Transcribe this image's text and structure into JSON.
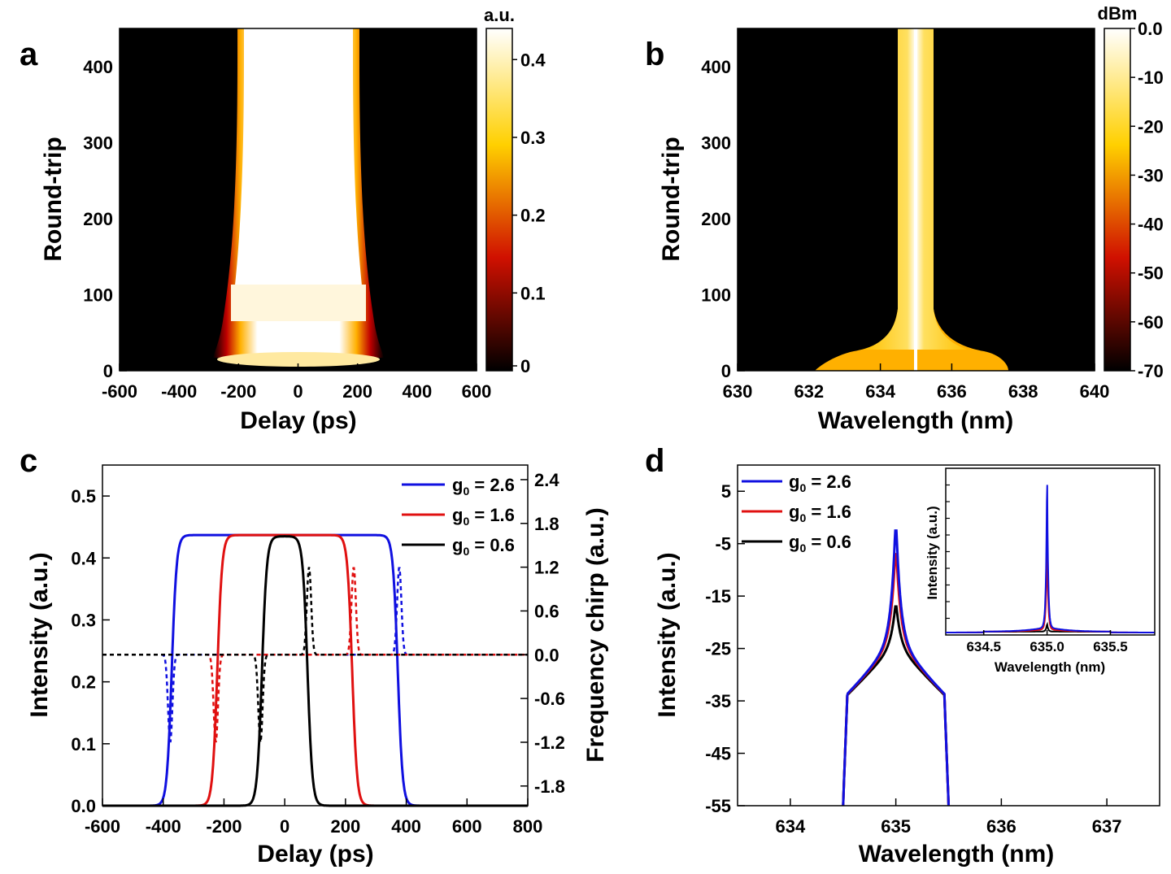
{
  "chart_data": [
    {
      "panel": "a",
      "type": "heatmap",
      "xlabel": "Delay (ps)",
      "ylabel": "Round-trip",
      "xlim": [
        -600,
        600
      ],
      "ylim": [
        0,
        450
      ],
      "xticks": [
        "-600",
        "-400",
        "-200",
        "0",
        "200",
        "400",
        "600"
      ],
      "yticks": [
        "0",
        "100",
        "200",
        "300",
        "400"
      ],
      "colorbar": {
        "unit": "a.u.",
        "min": 0,
        "max": 0.44,
        "ticks": [
          "0",
          "0.1",
          "0.2",
          "0.3",
          "0.4"
        ]
      },
      "description_points": {
        "steady_half_width_ps": 200,
        "initial_spread_ps": 280
      }
    },
    {
      "panel": "b",
      "type": "heatmap",
      "xlabel": "Wavelength (nm)",
      "ylabel": "Round-trip",
      "xlim": [
        630,
        640
      ],
      "ylim": [
        0,
        450
      ],
      "xticks": [
        "630",
        "632",
        "634",
        "636",
        "638",
        "640"
      ],
      "yticks": [
        "0",
        "100",
        "200",
        "300",
        "400"
      ],
      "colorbar": {
        "unit": "dBm",
        "min": -70,
        "max": 0,
        "ticks": [
          "0.0",
          "-10",
          "-20",
          "-30",
          "-40",
          "-50",
          "-60",
          "-70"
        ]
      },
      "description_points": {
        "center_nm": 635.0,
        "steady_half_width_nm": 0.5
      }
    },
    {
      "panel": "c",
      "type": "line",
      "xlabel": "Delay (ps)",
      "ylabel": "Intensity (a.u.)",
      "y2label": "Frequency chirp (a.u.)",
      "xlim": [
        -600,
        800
      ],
      "ylim": [
        0,
        0.55
      ],
      "y2lim": [
        -2.07,
        2.6
      ],
      "xticks": [
        "-600",
        "-400",
        "-200",
        "0",
        "200",
        "400",
        "600",
        "800"
      ],
      "yticks": [
        "0.0",
        "0.1",
        "0.2",
        "0.3",
        "0.4",
        "0.5"
      ],
      "y2ticks": [
        "-1.8",
        "-1.2",
        "-0.6",
        "0.0",
        "0.6",
        "1.2",
        "1.8",
        "2.4"
      ],
      "series": [
        {
          "name": "g0 = 2.6",
          "label_main": "g",
          "label_sub": "0",
          "label_rest": " = 2.6",
          "color": "#1010e0",
          "half_width": 372,
          "peak": 0.437,
          "chirp_extreme": 1.2
        },
        {
          "name": "g0 = 1.6",
          "label_main": "g",
          "label_sub": "0",
          "label_rest": " = 1.6",
          "color": "#e01010",
          "half_width": 222,
          "peak": 0.437,
          "chirp_extreme": 1.2
        },
        {
          "name": "g0 = 0.6",
          "label_main": "g",
          "label_sub": "0",
          "label_rest": " = 0.6",
          "color": "#000000",
          "half_width": 75,
          "peak": 0.435,
          "chirp_extreme": 1.2
        }
      ]
    },
    {
      "panel": "d",
      "type": "line",
      "xlabel": "Wavelength (nm)",
      "ylabel": "Intensity (a.u.)",
      "xlim": [
        633.5,
        637.5
      ],
      "ylim": [
        -55,
        10
      ],
      "xticks": [
        "634",
        "635",
        "636",
        "637"
      ],
      "yticks": [
        "5",
        "-5",
        "-15",
        "-25",
        "-35",
        "-45",
        "-55"
      ],
      "series": [
        {
          "name": "g0 = 2.6",
          "label_main": "g",
          "label_sub": "0",
          "label_rest": " = 2.6",
          "color": "#1010e0",
          "peak": -2.5
        },
        {
          "name": "g0 = 1.6",
          "label_main": "g",
          "label_sub": "0",
          "label_rest": " = 1.6",
          "color": "#e01010",
          "peak": -7
        },
        {
          "name": "g0 = 0.6",
          "label_main": "g",
          "label_sub": "0",
          "label_rest": " = 0.6",
          "color": "#000000",
          "peak": -17
        }
      ],
      "inset": {
        "xlabel": "Wavelength (nm)",
        "ylabel": "Intensity (a.u.)",
        "xlim": [
          634.2,
          635.85
        ],
        "xticks": [
          "634.5",
          "635.0",
          "635.5"
        ],
        "peaks": [
          1.0,
          0.58,
          0.05
        ]
      }
    }
  ]
}
